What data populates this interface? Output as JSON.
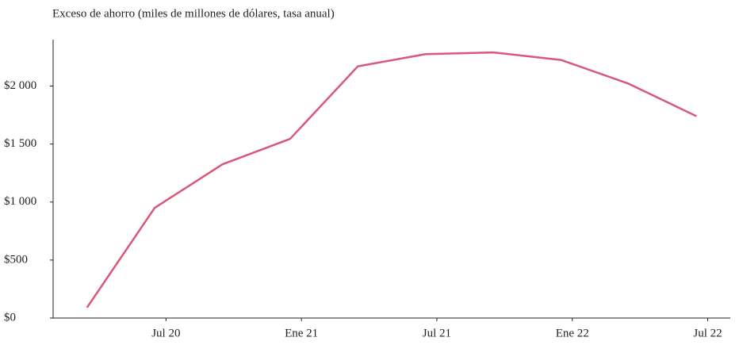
{
  "chart_data": {
    "type": "line",
    "title": "Exceso de ahorro (miles de millones de dólares, tasa anual)",
    "x": [
      "2020-03",
      "2020-06",
      "2020-09",
      "2020-12",
      "2021-03",
      "2021-06",
      "2021-09",
      "2021-12",
      "2022-03",
      "2022-06"
    ],
    "series": [
      {
        "name": "Exceso de ahorro",
        "color": "#d9587a",
        "values": [
          90,
          950,
          1325,
          1545,
          2170,
          2275,
          2290,
          2225,
          2020,
          1740
        ]
      }
    ],
    "xlim": [
      "2020-02",
      "2022-08"
    ],
    "xticks": [
      {
        "value": "2020-07",
        "label": "Jul 20"
      },
      {
        "value": "2021-01",
        "label": "Ene 21"
      },
      {
        "value": "2021-07",
        "label": "Jul 21"
      },
      {
        "value": "2022-01",
        "label": "Ene 22"
      },
      {
        "value": "2022-07",
        "label": "Jul 22"
      }
    ],
    "ylim": [
      0,
      2400
    ],
    "yticks": [
      {
        "value": 0,
        "label": "$0"
      },
      {
        "value": 500,
        "label": "$500"
      },
      {
        "value": 1000,
        "label": "$1 000"
      },
      {
        "value": 1500,
        "label": "$1 500"
      },
      {
        "value": 2000,
        "label": "$2 000"
      }
    ],
    "grid": false
  }
}
